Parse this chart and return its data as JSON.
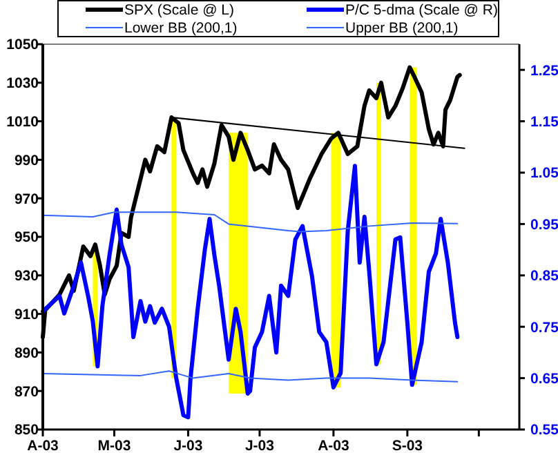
{
  "chart_data": {
    "type": "line",
    "xlim": [
      "2003-04-01",
      "2003-10-18"
    ],
    "xticks": [
      {
        "value": "2003-04-01",
        "label": "A-03"
      },
      {
        "value": "2003-05-01",
        "label": "M-03"
      },
      {
        "value": "2003-06-01",
        "label": "J-03"
      },
      {
        "value": "2003-07-01",
        "label": "J-03"
      },
      {
        "value": "2003-08-01",
        "label": "A-03"
      },
      {
        "value": "2003-09-01",
        "label": "S-03"
      },
      {
        "value": "2003-10-01",
        "label": null
      }
    ],
    "ylim": [
      850,
      1050
    ],
    "yticks": [
      850,
      870,
      890,
      910,
      930,
      950,
      970,
      990,
      1010,
      1030,
      1050
    ],
    "y2lim": [
      0.55,
      1.3
    ],
    "y2ticks": [
      0.55,
      0.65,
      0.75,
      0.85,
      0.95,
      1.05,
      1.15,
      1.25
    ],
    "legend": "top",
    "grid": false,
    "marker": "none",
    "line_style": "solid",
    "bands": [
      {
        "axis": "x",
        "from": "2003-04-22",
        "to": "2003-04-24",
        "color": "#ffff00"
      },
      {
        "axis": "x",
        "from": "2003-05-25",
        "to": "2003-05-27",
        "color": "#ffff00"
      },
      {
        "axis": "x",
        "from": "2003-06-18",
        "to": "2003-06-26",
        "color": "#ffff00"
      },
      {
        "axis": "x",
        "from": "2003-07-31",
        "to": "2003-08-04",
        "color": "#ffff00"
      },
      {
        "axis": "x",
        "from": "2003-08-19",
        "to": "2003-08-21",
        "color": "#ffff00"
      },
      {
        "axis": "x",
        "from": "2003-09-02",
        "to": "2003-09-05",
        "color": "#ffff00"
      }
    ],
    "series": [
      {
        "name": "SPX  (Scale @ L)",
        "color": "#000000",
        "x": [
          "2003-04-01",
          "2003-04-02",
          "2003-04-08",
          "2003-04-12",
          "2003-04-14",
          "2003-04-18",
          "2003-04-21",
          "2003-04-23",
          "2003-04-25",
          "2003-04-27",
          "2003-04-29",
          "2003-05-02",
          "2003-05-04",
          "2003-05-07",
          "2003-05-08",
          "2003-05-11",
          "2003-05-14",
          "2003-05-16",
          "2003-05-19",
          "2003-05-22",
          "2003-05-25",
          "2003-05-28",
          "2003-05-30",
          "2003-06-03",
          "2003-06-05",
          "2003-06-07",
          "2003-06-09",
          "2003-06-12",
          "2003-06-15",
          "2003-06-18",
          "2003-06-20",
          "2003-06-23",
          "2003-06-26",
          "2003-06-29",
          "2003-07-02",
          "2003-07-05",
          "2003-07-07",
          "2003-07-10",
          "2003-07-13",
          "2003-07-17",
          "2003-07-22",
          "2003-07-27",
          "2003-07-31",
          "2003-08-03",
          "2003-08-07",
          "2003-08-11",
          "2003-08-14",
          "2003-08-16",
          "2003-08-19",
          "2003-08-21",
          "2003-08-24",
          "2003-08-27",
          "2003-08-30",
          "2003-09-02",
          "2003-09-04",
          "2003-09-07",
          "2003-09-10",
          "2003-09-12",
          "2003-09-14",
          "2003-09-16",
          "2003-09-17",
          "2003-09-19",
          "2003-09-22",
          "2003-09-23"
        ],
        "values": [
          898,
          912,
          920,
          930,
          922,
          945,
          940,
          946,
          935,
          920,
          928,
          935,
          952,
          950,
          960,
          975,
          990,
          984,
          997,
          994,
          1012,
          1009,
          995,
          983,
          978,
          985,
          976,
          988,
          1008,
          1002,
          990,
          1004,
          995,
          985,
          987,
          983,
          998,
          990,
          985,
          965,
          980,
          993,
          1001,
          1004,
          993,
          997,
          1018,
          1026,
          1022,
          1030,
          1012,
          1018,
          1027,
          1038,
          1033,
          1025,
          1006,
          998,
          1004,
          997,
          1016,
          1021,
          1033,
          1034
        ]
      },
      {
        "name": "P/C 5-dma (Scale @ R)",
        "color": "#0000ff",
        "axis": "y2",
        "x": [
          "2003-04-01",
          "2003-04-08",
          "2003-04-10",
          "2003-04-14",
          "2003-04-17",
          "2003-04-20",
          "2003-04-22",
          "2003-04-24",
          "2003-04-26",
          "2003-04-29",
          "2003-05-02",
          "2003-05-04",
          "2003-05-07",
          "2003-05-09",
          "2003-05-12",
          "2003-05-14",
          "2003-05-16",
          "2003-05-18",
          "2003-05-21",
          "2003-05-24",
          "2003-05-27",
          "2003-05-30",
          "2003-06-01",
          "2003-06-02",
          "2003-06-05",
          "2003-06-08",
          "2003-06-10",
          "2003-06-12",
          "2003-06-14",
          "2003-06-16",
          "2003-06-18",
          "2003-06-21",
          "2003-06-23",
          "2003-06-26",
          "2003-06-27",
          "2003-06-29",
          "2003-07-02",
          "2003-07-05",
          "2003-07-08",
          "2003-07-10",
          "2003-07-13",
          "2003-07-16",
          "2003-07-19",
          "2003-07-23",
          "2003-07-26",
          "2003-07-29",
          "2003-08-01",
          "2003-08-04",
          "2003-08-07",
          "2003-08-10",
          "2003-08-12",
          "2003-08-14",
          "2003-08-16",
          "2003-08-19",
          "2003-08-22",
          "2003-08-27",
          "2003-08-29",
          "2003-09-01",
          "2003-09-03",
          "2003-09-07",
          "2003-09-10",
          "2003-09-13",
          "2003-09-15",
          "2003-09-18",
          "2003-09-21",
          "2003-09-22"
        ],
        "values": [
          0.78,
          0.81,
          0.776,
          0.83,
          0.875,
          0.81,
          0.76,
          0.673,
          0.79,
          0.89,
          0.978,
          0.91,
          0.866,
          0.73,
          0.8,
          0.76,
          0.79,
          0.758,
          0.785,
          0.75,
          0.65,
          0.578,
          0.574,
          0.65,
          0.785,
          0.9,
          0.96,
          0.89,
          0.83,
          0.758,
          0.686,
          0.785,
          0.74,
          0.62,
          0.625,
          0.71,
          0.74,
          0.81,
          0.7,
          0.83,
          0.81,
          0.92,
          0.946,
          0.848,
          0.74,
          0.72,
          0.632,
          0.66,
          0.937,
          1.063,
          0.875,
          0.964,
          0.857,
          0.677,
          0.72,
          0.92,
          0.924,
          0.758,
          0.637,
          0.72,
          0.857,
          0.893,
          0.96,
          0.875,
          0.758,
          0.73
        ]
      },
      {
        "name": "Lower BB (200,1)",
        "color": "#3366ff",
        "axis": "y2",
        "x": [
          "2003-04-01",
          "2003-05-12",
          "2003-05-24",
          "2003-06-03",
          "2003-06-18",
          "2003-06-27",
          "2003-07-13",
          "2003-07-29",
          "2003-08-16",
          "2003-09-03",
          "2003-09-22"
        ],
        "values": [
          0.659,
          0.655,
          0.664,
          0.65,
          0.659,
          0.65,
          0.646,
          0.65,
          0.65,
          0.646,
          0.643
        ]
      },
      {
        "name": "Upper BB (200,1)",
        "color": "#3366ff",
        "axis": "y2",
        "x": [
          "2003-04-01",
          "2003-04-22",
          "2003-05-01",
          "2003-05-27",
          "2003-06-12",
          "2003-06-18",
          "2003-07-13",
          "2003-07-18",
          "2003-07-29",
          "2003-08-16",
          "2003-09-03",
          "2003-09-22"
        ],
        "values": [
          0.967,
          0.964,
          0.973,
          0.973,
          0.968,
          0.95,
          0.937,
          0.935,
          0.937,
          0.946,
          0.952,
          0.951
        ]
      },
      {
        "color": "#000000",
        "x": [
          "2003-05-25",
          "2003-09-25"
        ],
        "values": [
          1012,
          996
        ]
      }
    ]
  }
}
